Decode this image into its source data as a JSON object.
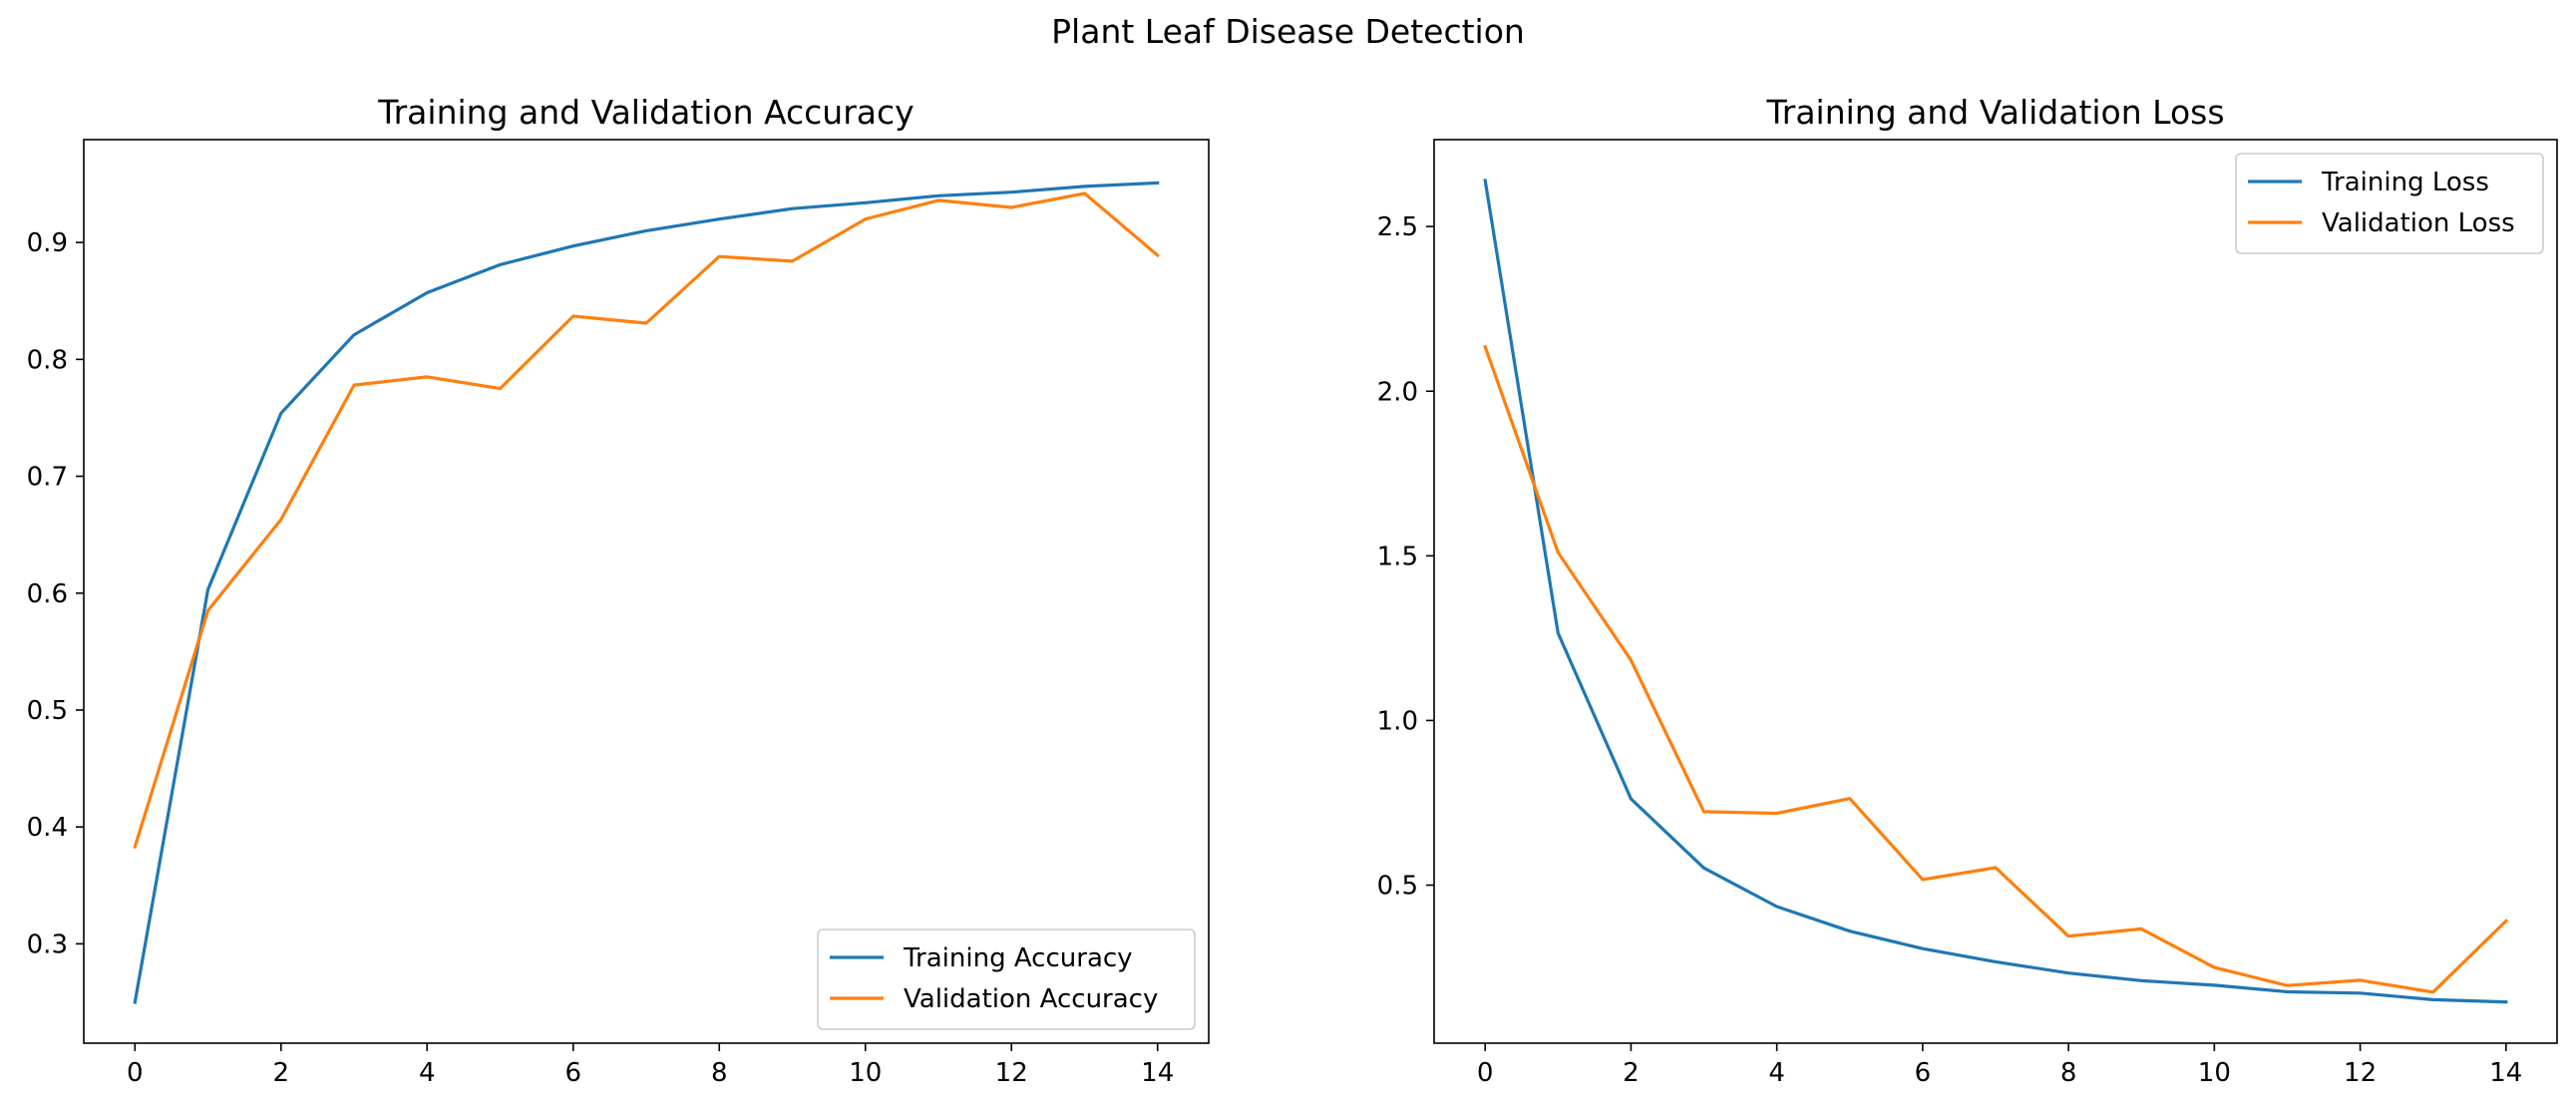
{
  "figure": {
    "suptitle": "Plant Leaf Disease Detection"
  },
  "colors": {
    "training": "#1f77b4",
    "validation": "#ff7f0e"
  },
  "chart_data": [
    {
      "type": "line",
      "title": "Training and Validation Accuracy",
      "xlabel": "",
      "ylabel": "",
      "xlim": [
        -0.7,
        14.7
      ],
      "ylim": [
        0.215,
        0.988
      ],
      "xticks": [
        0,
        2,
        4,
        6,
        8,
        10,
        12,
        14
      ],
      "xtick_labels": [
        "0",
        "2",
        "4",
        "6",
        "8",
        "10",
        "12",
        "14"
      ],
      "yticks": [
        0.3,
        0.4,
        0.5,
        0.6,
        0.7,
        0.8,
        0.9
      ],
      "ytick_labels": [
        "0.3",
        "0.4",
        "0.5",
        "0.6",
        "0.7",
        "0.8",
        "0.9"
      ],
      "legend_position": "lower-right",
      "x": [
        0,
        1,
        2,
        3,
        4,
        5,
        6,
        7,
        8,
        9,
        10,
        11,
        12,
        13,
        14
      ],
      "series": [
        {
          "name": "Training Accuracy",
          "color": "#1f77b4",
          "values": [
            0.25,
            0.603,
            0.754,
            0.821,
            0.857,
            0.881,
            0.897,
            0.91,
            0.92,
            0.929,
            0.934,
            0.94,
            0.943,
            0.948,
            0.951
          ]
        },
        {
          "name": "Validation Accuracy",
          "color": "#ff7f0e",
          "values": [
            0.383,
            0.585,
            0.663,
            0.778,
            0.785,
            0.775,
            0.837,
            0.831,
            0.888,
            0.884,
            0.92,
            0.936,
            0.93,
            0.942,
            0.889
          ]
        }
      ]
    },
    {
      "type": "line",
      "title": "Training and Validation Loss",
      "xlabel": "",
      "ylabel": "",
      "xlim": [
        -0.7,
        14.7
      ],
      "ylim": [
        0.02,
        2.764
      ],
      "xticks": [
        0,
        2,
        4,
        6,
        8,
        10,
        12,
        14
      ],
      "xtick_labels": [
        "0",
        "2",
        "4",
        "6",
        "8",
        "10",
        "12",
        "14"
      ],
      "yticks": [
        0.5,
        1.0,
        1.5,
        2.0,
        2.5
      ],
      "ytick_labels": [
        "0.5",
        "1.0",
        "1.5",
        "2.0",
        "2.5"
      ],
      "legend_position": "upper-right",
      "x": [
        0,
        1,
        2,
        3,
        4,
        5,
        6,
        7,
        8,
        9,
        10,
        11,
        12,
        13,
        14
      ],
      "series": [
        {
          "name": "Training Loss",
          "color": "#1f77b4",
          "values": [
            2.64,
            1.265,
            0.762,
            0.552,
            0.435,
            0.36,
            0.307,
            0.267,
            0.233,
            0.21,
            0.196,
            0.176,
            0.172,
            0.152,
            0.145
          ]
        },
        {
          "name": "Validation Loss",
          "color": "#ff7f0e",
          "values": [
            2.135,
            1.51,
            1.183,
            0.723,
            0.718,
            0.763,
            0.517,
            0.553,
            0.345,
            0.367,
            0.25,
            0.195,
            0.211,
            0.175,
            0.391
          ]
        }
      ]
    }
  ]
}
